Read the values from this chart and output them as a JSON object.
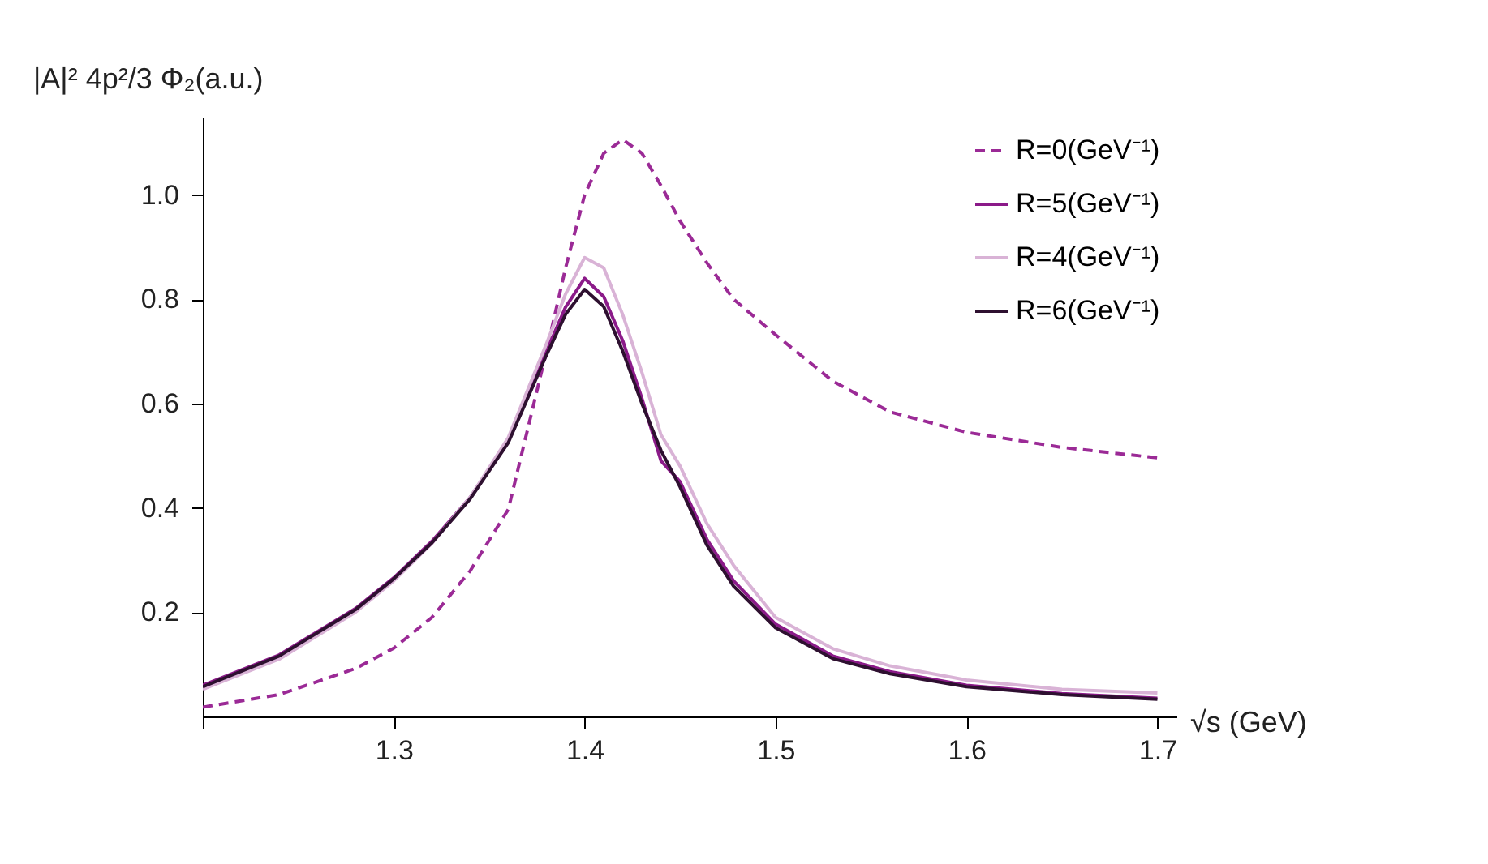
{
  "chart_data": {
    "type": "line",
    "ylabel": "|A|² 4p²/3 Φ₂(a.u.)",
    "xlabel": "√s (GeV)",
    "xlim": [
      1.2,
      1.71
    ],
    "ylim": [
      0,
      1.15
    ],
    "xticks": [
      {
        "value": 1.2,
        "label": null
      },
      1.3,
      1.4,
      1.5,
      1.6,
      1.7
    ],
    "yticks": [
      0.2,
      0.4,
      0.6,
      0.8,
      {
        "value": 1,
        "label": "1.0"
      }
    ],
    "grid": false,
    "legend": "top right",
    "marker": "none",
    "x": [
      1.2,
      1.24,
      1.28,
      1.3,
      1.32,
      1.34,
      1.36,
      1.38,
      1.39,
      1.4,
      1.41,
      1.42,
      1.43,
      1.44,
      1.45,
      1.464,
      1.478,
      1.5,
      1.53,
      1.56,
      1.6,
      1.65,
      1.7
    ],
    "series": [
      {
        "name": "R=0(GeV⁻¹)",
        "color": "#9b2a96",
        "line_style": "dashed",
        "values": [
          0.018,
          0.042,
          0.092,
          0.131,
          0.19,
          0.279,
          0.397,
          0.7,
          0.86,
          1.0,
          1.08,
          1.106,
          1.08,
          1.018,
          0.95,
          0.87,
          0.8,
          0.732,
          0.643,
          0.584,
          0.545,
          0.516,
          0.496
        ]
      },
      {
        "name": "R=5(GeV⁻¹)",
        "color": "#8b1a89",
        "line_style": "solid",
        "values": [
          0.06,
          0.118,
          0.207,
          0.266,
          0.336,
          0.42,
          0.53,
          0.7,
          0.785,
          0.84,
          0.805,
          0.72,
          0.61,
          0.49,
          0.45,
          0.34,
          0.26,
          0.177,
          0.116,
          0.086,
          0.06,
          0.044,
          0.035
        ]
      },
      {
        "name": "R=4(GeV⁻¹)",
        "color": "#d9b3d6",
        "line_style": "solid",
        "values": [
          0.052,
          0.11,
          0.2,
          0.26,
          0.332,
          0.42,
          0.535,
          0.715,
          0.81,
          0.88,
          0.86,
          0.77,
          0.66,
          0.54,
          0.48,
          0.37,
          0.29,
          0.19,
          0.13,
          0.097,
          0.07,
          0.052,
          0.045
        ]
      },
      {
        "name": "R=6(GeV⁻¹)",
        "color": "#2e1030",
        "line_style": "solid",
        "values": [
          0.057,
          0.116,
          0.205,
          0.264,
          0.333,
          0.417,
          0.525,
          0.693,
          0.771,
          0.819,
          0.786,
          0.7,
          0.6,
          0.51,
          0.44,
          0.329,
          0.25,
          0.17,
          0.111,
          0.082,
          0.057,
          0.042,
          0.033
        ]
      }
    ]
  }
}
